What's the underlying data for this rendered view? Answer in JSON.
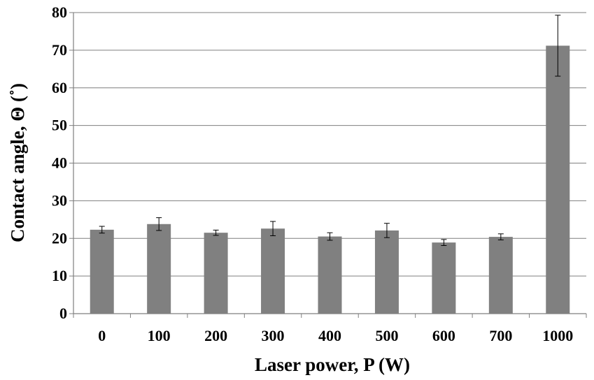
{
  "chart_data": {
    "type": "bar",
    "title": "",
    "xlabel": "Laser power, P (W)",
    "ylabel": "Contact angle, Θ (˚)",
    "categories": [
      "0",
      "100",
      "200",
      "300",
      "400",
      "500",
      "600",
      "700",
      "1000"
    ],
    "values": [
      22.3,
      23.8,
      21.5,
      22.6,
      20.5,
      22.1,
      18.9,
      20.4,
      71.2
    ],
    "error": [
      0.9,
      1.7,
      0.7,
      1.9,
      1.0,
      1.9,
      0.8,
      0.8,
      8.1
    ],
    "ylim": [
      0,
      80
    ],
    "yticks": [
      "0",
      "10",
      "20",
      "30",
      "40",
      "50",
      "60",
      "70",
      "80"
    ],
    "grid": true,
    "legend": "none",
    "bar_color": "#808080",
    "grid_color": "#7f7f7f"
  }
}
